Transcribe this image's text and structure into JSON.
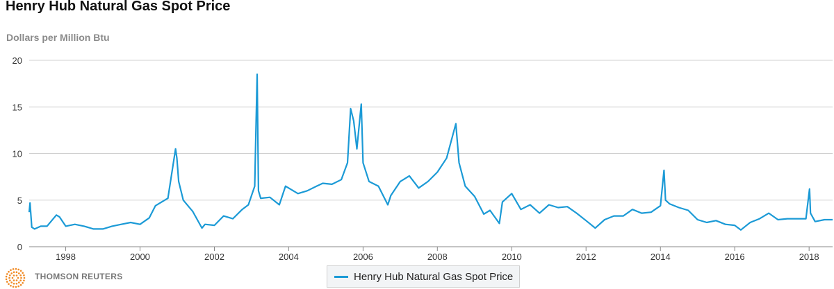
{
  "brand": {
    "text": "THOMSON REUTERS",
    "logo_color": "#f08a24"
  },
  "colors": {
    "series": "#1b9ad6",
    "grid": "#d0d0d0",
    "axis": "#888888"
  },
  "chart_data": {
    "type": "line",
    "title": "Henry Hub Natural Gas Spot Price",
    "ylabel": "Dollars per Million Btu",
    "xlabel": "",
    "x_ticks": [
      "1998",
      "2000",
      "2002",
      "2004",
      "2006",
      "2008",
      "2010",
      "2012",
      "2014",
      "2016",
      "2018"
    ],
    "y_ticks": [
      "0",
      "5",
      "10",
      "15",
      "20"
    ],
    "ylim": [
      0,
      20
    ],
    "xlim": [
      "1997-01-07",
      "2018-08-20"
    ],
    "grid": true,
    "legend": "bottom-center",
    "series": [
      {
        "name": "Henry Hub Natural Gas Spot Price",
        "x": [
          "1997-01-07",
          "1997-01-15",
          "1997-02-01",
          "1997-03-01",
          "1997-05-01",
          "1997-07-01",
          "1997-10-01",
          "1997-11-01",
          "1998-01-01",
          "1998-04-01",
          "1998-07-01",
          "1998-10-01",
          "1999-01-01",
          "1999-04-01",
          "1999-07-01",
          "1999-10-01",
          "2000-01-01",
          "2000-04-01",
          "2000-06-01",
          "2000-08-01",
          "2000-10-01",
          "2000-12-15",
          "2000-12-28",
          "2001-01-15",
          "2001-03-01",
          "2001-06-01",
          "2001-09-01",
          "2001-10-01",
          "2002-01-01",
          "2002-04-01",
          "2002-07-01",
          "2002-10-01",
          "2002-12-01",
          "2003-02-01",
          "2003-02-25",
          "2003-03-10",
          "2003-04-01",
          "2003-07-01",
          "2003-10-01",
          "2003-12-01",
          "2004-01-15",
          "2004-04-01",
          "2004-07-01",
          "2004-10-01",
          "2004-12-01",
          "2005-03-01",
          "2005-06-01",
          "2005-08-01",
          "2005-09-01",
          "2005-10-01",
          "2005-11-01",
          "2005-12-14",
          "2006-01-01",
          "2006-03-01",
          "2006-06-01",
          "2006-09-01",
          "2006-10-01",
          "2007-01-01",
          "2007-04-01",
          "2007-07-01",
          "2007-10-01",
          "2008-01-01",
          "2008-04-01",
          "2008-07-01",
          "2008-08-01",
          "2008-10-01",
          "2009-01-01",
          "2009-04-01",
          "2009-06-01",
          "2009-09-01",
          "2009-10-01",
          "2010-01-01",
          "2010-04-01",
          "2010-07-01",
          "2010-10-01",
          "2011-01-01",
          "2011-04-01",
          "2011-07-01",
          "2011-10-01",
          "2012-01-01",
          "2012-04-01",
          "2012-07-01",
          "2012-10-01",
          "2013-01-01",
          "2013-04-01",
          "2013-07-01",
          "2013-10-01",
          "2014-01-01",
          "2014-02-05",
          "2014-02-20",
          "2014-04-01",
          "2014-07-01",
          "2014-10-01",
          "2015-01-01",
          "2015-04-01",
          "2015-07-01",
          "2015-10-01",
          "2016-01-01",
          "2016-03-01",
          "2016-06-01",
          "2016-09-01",
          "2016-12-01",
          "2017-03-01",
          "2017-06-01",
          "2017-09-01",
          "2017-12-01",
          "2018-01-05",
          "2018-01-15",
          "2018-03-01",
          "2018-06-01",
          "2018-08-20"
        ],
        "values": [
          3.7,
          4.7,
          2.1,
          1.9,
          2.2,
          2.2,
          3.4,
          3.2,
          2.2,
          2.4,
          2.2,
          1.9,
          1.9,
          2.2,
          2.4,
          2.6,
          2.4,
          3.1,
          4.4,
          4.8,
          5.2,
          10.5,
          9.5,
          7.0,
          5.0,
          3.8,
          2.0,
          2.4,
          2.3,
          3.3,
          3.0,
          4.0,
          4.5,
          6.5,
          18.5,
          6.0,
          5.2,
          5.3,
          4.5,
          6.5,
          6.2,
          5.7,
          6.0,
          6.5,
          6.8,
          6.7,
          7.2,
          9.0,
          14.8,
          13.5,
          10.5,
          15.3,
          9.0,
          7.0,
          6.5,
          4.5,
          5.5,
          7.0,
          7.6,
          6.3,
          7.0,
          8.0,
          9.5,
          13.2,
          9.0,
          6.5,
          5.4,
          3.5,
          3.9,
          2.5,
          4.8,
          5.7,
          4.0,
          4.5,
          3.6,
          4.5,
          4.2,
          4.3,
          3.6,
          2.8,
          2.0,
          2.9,
          3.3,
          3.3,
          4.0,
          3.6,
          3.7,
          4.4,
          8.2,
          5.0,
          4.6,
          4.2,
          3.9,
          2.9,
          2.6,
          2.8,
          2.4,
          2.3,
          1.8,
          2.6,
          3.0,
          3.6,
          2.9,
          3.0,
          3.0,
          3.0,
          6.2,
          3.6,
          2.7,
          2.9,
          2.9
        ]
      }
    ]
  }
}
